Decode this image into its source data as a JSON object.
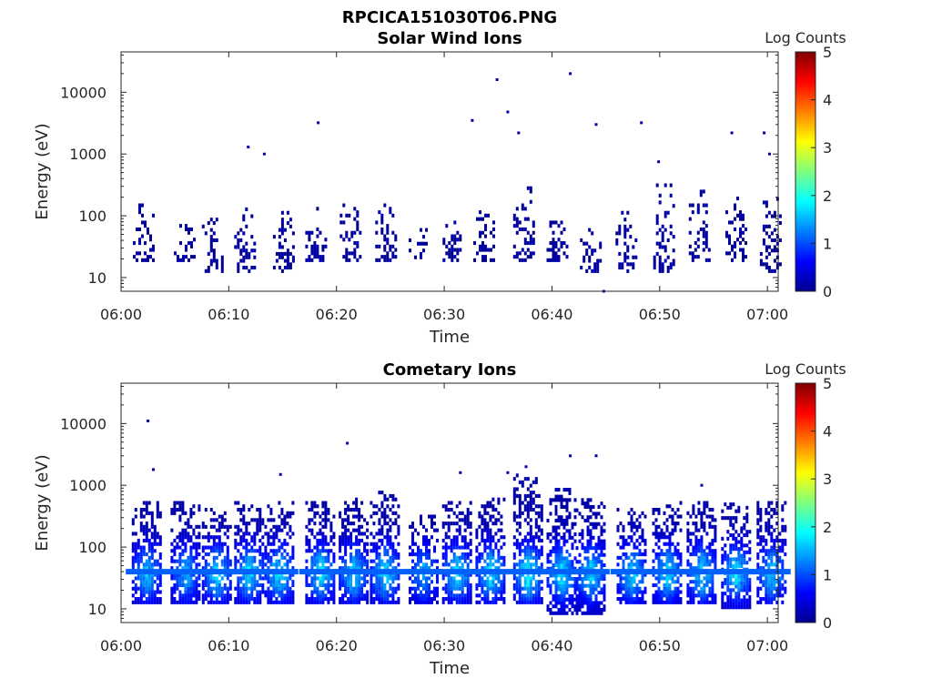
{
  "figure_title": "RPCICA151030T06.PNG",
  "chart_data": [
    {
      "type": "heatmap",
      "title": "Solar Wind Ions",
      "xlabel": "Time",
      "ylabel": "Energy (eV)",
      "x_ticks": [
        "06:00",
        "06:10",
        "06:20",
        "06:30",
        "06:40",
        "06:50",
        "07:00"
      ],
      "x_range_minutes": [
        0,
        61
      ],
      "y_scale": "log",
      "y_ticks": [
        "10",
        "100",
        "1000",
        "10000"
      ],
      "y_range": [
        6,
        45000
      ],
      "colorbar": {
        "label": "Log Counts",
        "range": [
          0,
          5
        ],
        "ticks": [
          "0",
          "1",
          "2",
          "3",
          "4",
          "5"
        ],
        "colormap": "jet"
      },
      "bursts": [
        {
          "t": 2.0,
          "lo": 18,
          "hi": 170,
          "peak": 0.3
        },
        {
          "t": 5.8,
          "lo": 18,
          "hi": 80,
          "peak": 0.25
        },
        {
          "t": 8.4,
          "lo": 12,
          "hi": 100,
          "peak": 0.3
        },
        {
          "t": 11.4,
          "lo": 12,
          "hi": 130,
          "peak": 0.3
        },
        {
          "t": 15.0,
          "lo": 12,
          "hi": 110,
          "peak": 0.3
        },
        {
          "t": 18.0,
          "lo": 18,
          "hi": 130,
          "peak": 0.3
        },
        {
          "t": 21.2,
          "lo": 18,
          "hi": 140,
          "peak": 0.3
        },
        {
          "t": 24.5,
          "lo": 18,
          "hi": 170,
          "peak": 0.3
        },
        {
          "t": 27.6,
          "lo": 20,
          "hi": 60,
          "peak": 0.2
        },
        {
          "t": 30.5,
          "lo": 18,
          "hi": 80,
          "peak": 0.3
        },
        {
          "t": 33.6,
          "lo": 18,
          "hi": 110,
          "peak": 0.3
        },
        {
          "t": 37.3,
          "lo": 18,
          "hi": 300,
          "peak": 0.35
        },
        {
          "t": 40.4,
          "lo": 18,
          "hi": 120,
          "peak": 0.35
        },
        {
          "t": 43.5,
          "lo": 12,
          "hi": 60,
          "peak": 0.3
        },
        {
          "t": 46.8,
          "lo": 12,
          "hi": 120,
          "peak": 0.3
        },
        {
          "t": 50.3,
          "lo": 12,
          "hi": 300,
          "peak": 0.3
        },
        {
          "t": 53.6,
          "lo": 18,
          "hi": 300,
          "peak": 0.3
        },
        {
          "t": 57.0,
          "lo": 18,
          "hi": 200,
          "peak": 0.3
        },
        {
          "t": 60.2,
          "lo": 12,
          "hi": 200,
          "peak": 0.3
        }
      ],
      "scatter_points": [
        {
          "t": 11.8,
          "e": 1300
        },
        {
          "t": 13.3,
          "e": 1000
        },
        {
          "t": 18.3,
          "e": 3200
        },
        {
          "t": 32.6,
          "e": 3500
        },
        {
          "t": 34.9,
          "e": 16000
        },
        {
          "t": 35.9,
          "e": 4800
        },
        {
          "t": 36.9,
          "e": 2200
        },
        {
          "t": 41.7,
          "e": 20000
        },
        {
          "t": 44.1,
          "e": 3000
        },
        {
          "t": 48.3,
          "e": 3200
        },
        {
          "t": 49.9,
          "e": 750
        },
        {
          "t": 56.7,
          "e": 2200
        },
        {
          "t": 59.7,
          "e": 2200
        },
        {
          "t": 60.2,
          "e": 1000
        },
        {
          "t": 44.8,
          "e": 6
        }
      ]
    },
    {
      "type": "heatmap",
      "title": "Cometary Ions",
      "xlabel": "Time",
      "ylabel": "Energy (eV)",
      "x_ticks": [
        "06:00",
        "06:10",
        "06:20",
        "06:30",
        "06:40",
        "06:50",
        "07:00"
      ],
      "x_range_minutes": [
        0,
        61
      ],
      "y_scale": "log",
      "y_ticks": [
        "10",
        "100",
        "1000",
        "10000"
      ],
      "y_range": [
        6,
        45000
      ],
      "colorbar": {
        "label": "Log Counts",
        "range": [
          0,
          5
        ],
        "ticks": [
          "0",
          "1",
          "2",
          "3",
          "4",
          "5"
        ],
        "colormap": "jet"
      },
      "bursts": [
        {
          "t": 2.3,
          "lo": 12,
          "hi": 500,
          "peak": 1.6
        },
        {
          "t": 5.9,
          "lo": 12,
          "hi": 500,
          "peak": 1.5
        },
        {
          "t": 8.8,
          "lo": 12,
          "hi": 400,
          "peak": 1.8
        },
        {
          "t": 11.8,
          "lo": 12,
          "hi": 500,
          "peak": 1.8
        },
        {
          "t": 14.6,
          "lo": 12,
          "hi": 500,
          "peak": 1.8
        },
        {
          "t": 18.4,
          "lo": 12,
          "hi": 500,
          "peak": 1.8
        },
        {
          "t": 21.5,
          "lo": 12,
          "hi": 600,
          "peak": 1.8
        },
        {
          "t": 24.4,
          "lo": 12,
          "hi": 800,
          "peak": 1.8
        },
        {
          "t": 28.0,
          "lo": 12,
          "hi": 300,
          "peak": 1.5
        },
        {
          "t": 31.1,
          "lo": 12,
          "hi": 500,
          "peak": 1.8
        },
        {
          "t": 34.2,
          "lo": 12,
          "hi": 600,
          "peak": 1.8
        },
        {
          "t": 37.7,
          "lo": 12,
          "hi": 1500,
          "peak": 2.0
        },
        {
          "t": 40.8,
          "lo": 8,
          "hi": 800,
          "peak": 1.9
        },
        {
          "t": 43.5,
          "lo": 8,
          "hi": 600,
          "peak": 1.8
        },
        {
          "t": 47.3,
          "lo": 12,
          "hi": 400,
          "peak": 1.8
        },
        {
          "t": 50.6,
          "lo": 12,
          "hi": 500,
          "peak": 1.8
        },
        {
          "t": 53.8,
          "lo": 12,
          "hi": 500,
          "peak": 1.8
        },
        {
          "t": 57.0,
          "lo": 10,
          "hi": 500,
          "peak": 1.8
        },
        {
          "t": 60.3,
          "lo": 12,
          "hi": 500,
          "peak": 1.7
        }
      ],
      "scatter_points": [
        {
          "t": 2.5,
          "e": 11000
        },
        {
          "t": 3.0,
          "e": 1800
        },
        {
          "t": 14.8,
          "e": 1500
        },
        {
          "t": 21.0,
          "e": 4800
        },
        {
          "t": 31.5,
          "e": 1600
        },
        {
          "t": 35.9,
          "e": 1600
        },
        {
          "t": 37.6,
          "e": 2000
        },
        {
          "t": 41.7,
          "e": 3000
        },
        {
          "t": 44.1,
          "e": 3000
        },
        {
          "t": 53.9,
          "e": 1000
        }
      ]
    }
  ]
}
